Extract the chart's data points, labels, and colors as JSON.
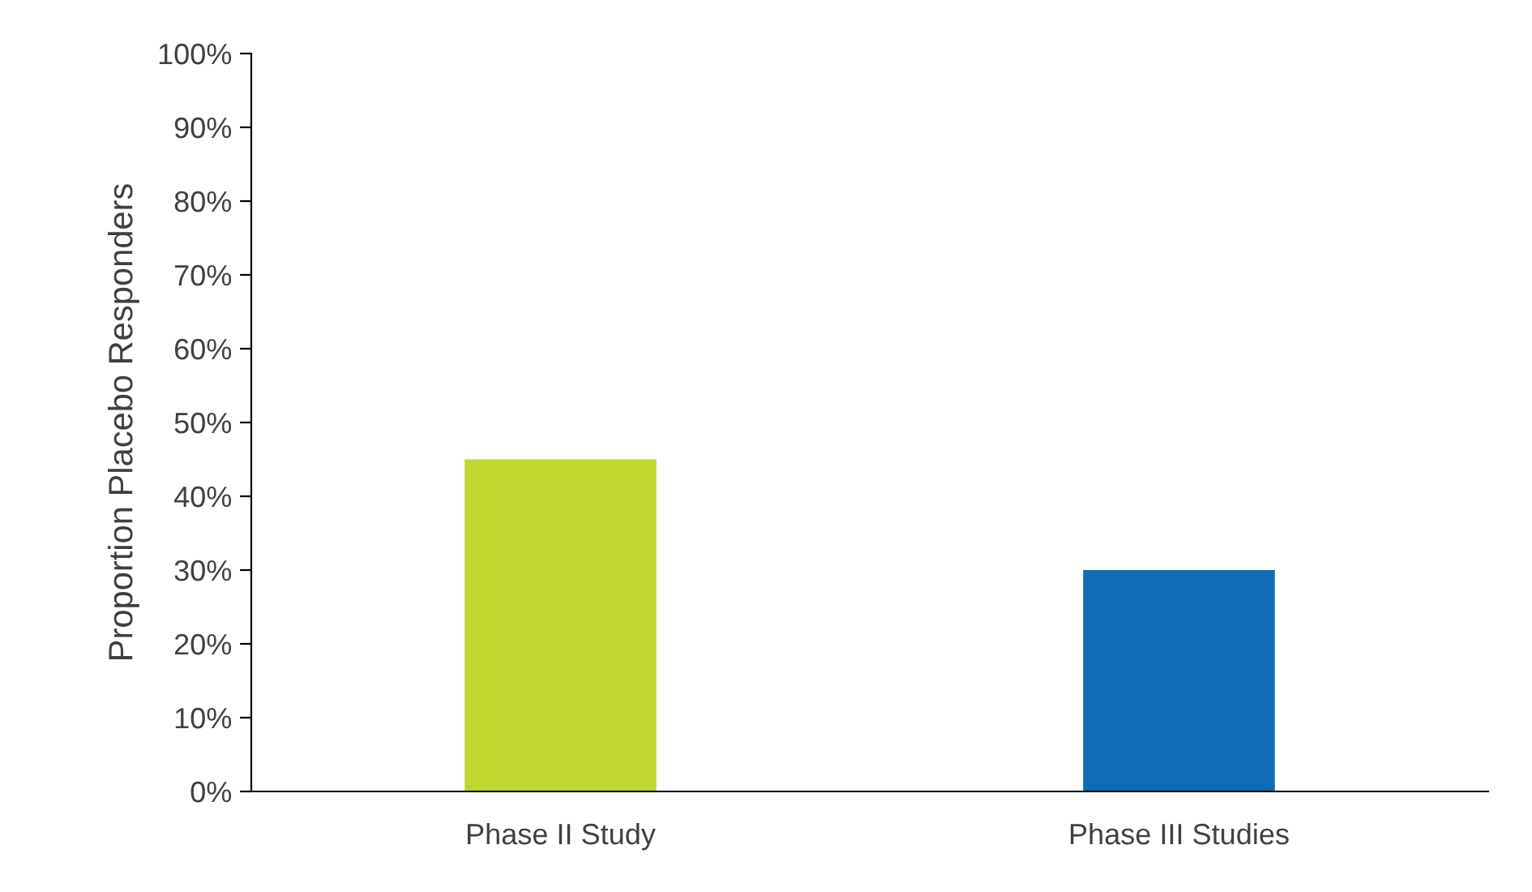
{
  "chart_data": {
    "type": "bar",
    "ylabel": "Proportion Placebo Responders",
    "categories": [
      "Phase II Study",
      "Phase III Studies"
    ],
    "values": [
      45,
      30
    ],
    "colors": [
      "#c0d72f",
      "#106cb5"
    ],
    "ylim": [
      0,
      100
    ],
    "yticks": [
      {
        "value": 0,
        "label": "0%"
      },
      {
        "value": 10,
        "label": "10%"
      },
      {
        "value": 20,
        "label": "20%"
      },
      {
        "value": 30,
        "label": "30%"
      },
      {
        "value": 40,
        "label": "40%"
      },
      {
        "value": 50,
        "label": "50%"
      },
      {
        "value": 60,
        "label": "60%"
      },
      {
        "value": 70,
        "label": "70%"
      },
      {
        "value": 80,
        "label": "80%"
      },
      {
        "value": 90,
        "label": "90%"
      },
      {
        "value": 100,
        "label": "100%"
      }
    ],
    "grid": false,
    "legend": false
  }
}
